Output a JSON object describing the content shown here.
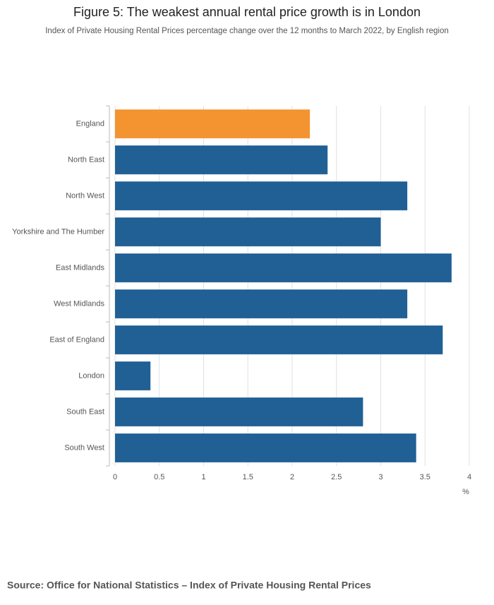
{
  "chart_data": {
    "type": "bar",
    "orientation": "horizontal",
    "title": "Figure 5: The weakest annual rental price growth is in London",
    "subtitle": "Index of Private Housing Rental Prices percentage change over the 12 months to March 2022, by English region",
    "categories": [
      "England",
      "North East",
      "North West",
      "Yorkshire and The Humber",
      "East Midlands",
      "West Midlands",
      "East of England",
      "London",
      "South East",
      "South West"
    ],
    "values": [
      2.2,
      2.4,
      3.3,
      3.0,
      3.8,
      3.3,
      3.7,
      0.4,
      2.8,
      3.4
    ],
    "colors": [
      "#f39431",
      "#206095",
      "#206095",
      "#206095",
      "#206095",
      "#206095",
      "#206095",
      "#206095",
      "#206095",
      "#206095"
    ],
    "xlim": [
      0,
      4
    ],
    "xticks": [
      0,
      0.5,
      1,
      1.5,
      2,
      2.5,
      3,
      3.5,
      4
    ],
    "x_label": "%",
    "grid": true,
    "source": "Source: Office for National Statistics – Index of Private Housing Rental Prices"
  }
}
